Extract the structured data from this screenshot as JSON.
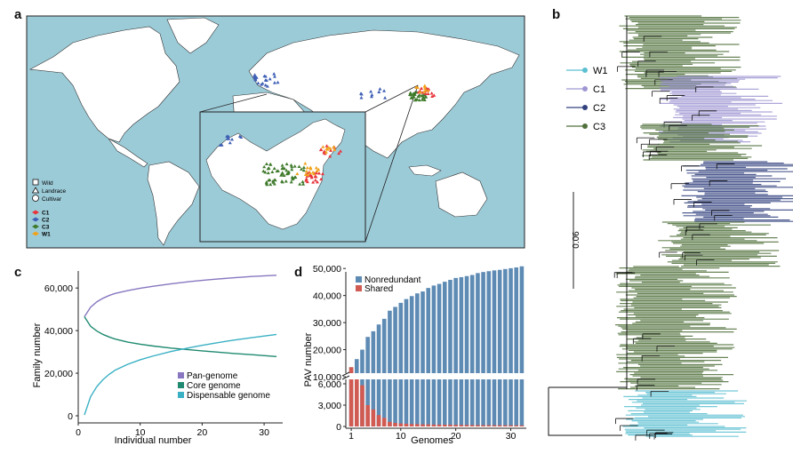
{
  "panels": {
    "a": {
      "label": "a"
    },
    "b": {
      "label": "b"
    },
    "c": {
      "label": "c"
    },
    "d": {
      "label": "d"
    }
  },
  "map": {
    "ocean_color": "#9ccbd8",
    "land_color": "#ffffff",
    "legend_shapes": [
      {
        "shape": "square",
        "label": "Wild"
      },
      {
        "shape": "triangle",
        "label": "Landrace"
      },
      {
        "shape": "circle",
        "label": "Cultivar"
      }
    ],
    "legend_groups": [
      {
        "label": "C1",
        "color": "#e8343b"
      },
      {
        "label": "C2",
        "color": "#3e5fb5"
      },
      {
        "label": "C3",
        "color": "#3f7a2b"
      },
      {
        "label": "W1",
        "color": "#f0a21c"
      }
    ]
  },
  "tree": {
    "scale_label": "0.06",
    "legend": [
      {
        "label": "W1",
        "color": "#5bbfd2"
      },
      {
        "label": "C1",
        "color": "#9f97d3"
      },
      {
        "label": "C2",
        "color": "#33427f"
      },
      {
        "label": "C3",
        "color": "#50703c"
      }
    ]
  },
  "chart_data": [
    {
      "type": "line",
      "panel": "c",
      "title": "",
      "xlabel": "Individual number",
      "ylabel": "Family number",
      "xlim": [
        0,
        33
      ],
      "ylim": [
        0,
        68000
      ],
      "xticks": [
        0,
        10,
        20,
        30
      ],
      "yticks": [
        0,
        20000,
        40000,
        60000
      ],
      "ytick_labels": [
        "0",
        "20,000",
        "40,000",
        "60,000"
      ],
      "legend_position": "bottom-right",
      "series": [
        {
          "name": "Pan-genome",
          "color": "#8877c0",
          "x": [
            1,
            2,
            3,
            4,
            5,
            6,
            8,
            10,
            12,
            15,
            18,
            20,
            22,
            25,
            28,
            32
          ],
          "y": [
            46500,
            51000,
            53500,
            55200,
            56500,
            57500,
            58800,
            59900,
            60800,
            62000,
            63000,
            63600,
            64100,
            64800,
            65400,
            66000
          ]
        },
        {
          "name": "Core genome",
          "color": "#1f8a70",
          "x": [
            1,
            2,
            3,
            4,
            5,
            6,
            8,
            10,
            12,
            15,
            18,
            20,
            22,
            25,
            28,
            32
          ],
          "y": [
            46500,
            42000,
            39800,
            38200,
            37000,
            36000,
            34600,
            33600,
            32800,
            31800,
            31000,
            30500,
            30000,
            29300,
            28700,
            27800
          ]
        },
        {
          "name": "Dispensable genome",
          "color": "#3ab0c4",
          "x": [
            1,
            2,
            3,
            4,
            5,
            6,
            8,
            10,
            12,
            15,
            18,
            20,
            22,
            25,
            28,
            32
          ],
          "y": [
            400,
            9000,
            13700,
            17000,
            19500,
            21500,
            24200,
            26300,
            28000,
            30200,
            32000,
            33100,
            34100,
            35500,
            36700,
            38200
          ]
        }
      ]
    },
    {
      "type": "bar",
      "panel": "d",
      "title": "",
      "xlabel": "Genomes",
      "ylabel": "PAV number",
      "axis_break": [
        6500,
        10000
      ],
      "upper_ylim": [
        10000,
        50000
      ],
      "lower_ylim": [
        0,
        7000
      ],
      "upper_yticks": [
        10000,
        20000,
        30000,
        40000,
        50000
      ],
      "upper_ytick_labels": [
        "10,000",
        "20,000",
        "30,000",
        "40,000",
        "50,000"
      ],
      "lower_yticks": [
        0,
        3000,
        6000
      ],
      "lower_ytick_labels": [
        "0",
        "3,000",
        "6,000"
      ],
      "xticks": [
        1,
        10,
        20,
        30
      ],
      "legend_position": "top-left",
      "categories": [
        1,
        2,
        3,
        4,
        5,
        6,
        7,
        8,
        9,
        10,
        11,
        12,
        13,
        14,
        15,
        16,
        17,
        18,
        19,
        20,
        21,
        22,
        23,
        24,
        25,
        26,
        27,
        28,
        29,
        30,
        31,
        32
      ],
      "series": [
        {
          "name": "Nonredundant",
          "color": "#5e8bb4",
          "values": [
            13500,
            16500,
            20000,
            24700,
            26800,
            29300,
            31400,
            34400,
            35800,
            37300,
            38700,
            39800,
            40800,
            41500,
            42800,
            43700,
            44300,
            45100,
            45800,
            46500,
            46800,
            47200,
            47600,
            48300,
            48700,
            49000,
            49300,
            49500,
            49800,
            50100,
            50400,
            50800
          ]
        },
        {
          "name": "Shared",
          "color": "#d15a52",
          "values": [
            13500,
            10200,
            5800,
            3000,
            2400,
            1600,
            1200,
            650,
            500,
            420,
            380,
            350,
            330,
            300,
            290,
            270,
            260,
            250,
            240,
            230,
            220,
            210,
            200,
            190,
            185,
            180,
            175,
            170,
            165,
            160,
            155,
            150
          ]
        }
      ]
    }
  ]
}
